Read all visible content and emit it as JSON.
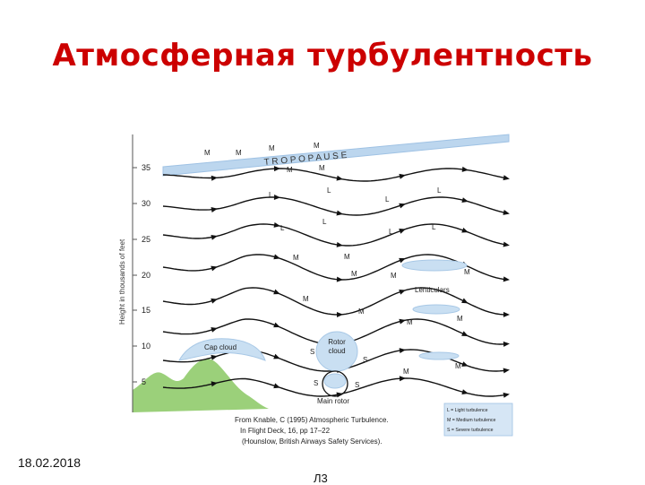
{
  "slide": {
    "title": "Атмосферная турбулентность",
    "date": "18.02.2018",
    "page_label": "Л3"
  },
  "diagram": {
    "y_axis_label": "Height in thousands of feet",
    "y_ticks": [
      "35",
      "30",
      "25",
      "20",
      "15",
      "10",
      "5"
    ],
    "tropopause_label": "T R O P O P A U S E",
    "labels": {
      "cap_cloud": "Cap cloud",
      "rotor_cloud": "Rotor cloud",
      "main_rotor": "Main rotor",
      "lenticulars": "Lenticulars"
    },
    "turbulence_marks": {
      "light": "L",
      "medium": "M",
      "severe": "S"
    },
    "legend": [
      "L = Light turbulence",
      "M = Medium turbulence",
      "S = Severe turbulence"
    ],
    "citation": [
      "From Knable, C (1995) Atmospheric Turbulence.",
      "In Flight Deck, 16, pp 17–22",
      "(Hounslow, British Airways Safety Services)."
    ],
    "colors": {
      "tropopause": "#bcd6ee",
      "cloud": "#c9dff2",
      "mountain": "#9bd07a",
      "legend_bg": "#d6e6f5",
      "title": "#cc0000"
    }
  }
}
